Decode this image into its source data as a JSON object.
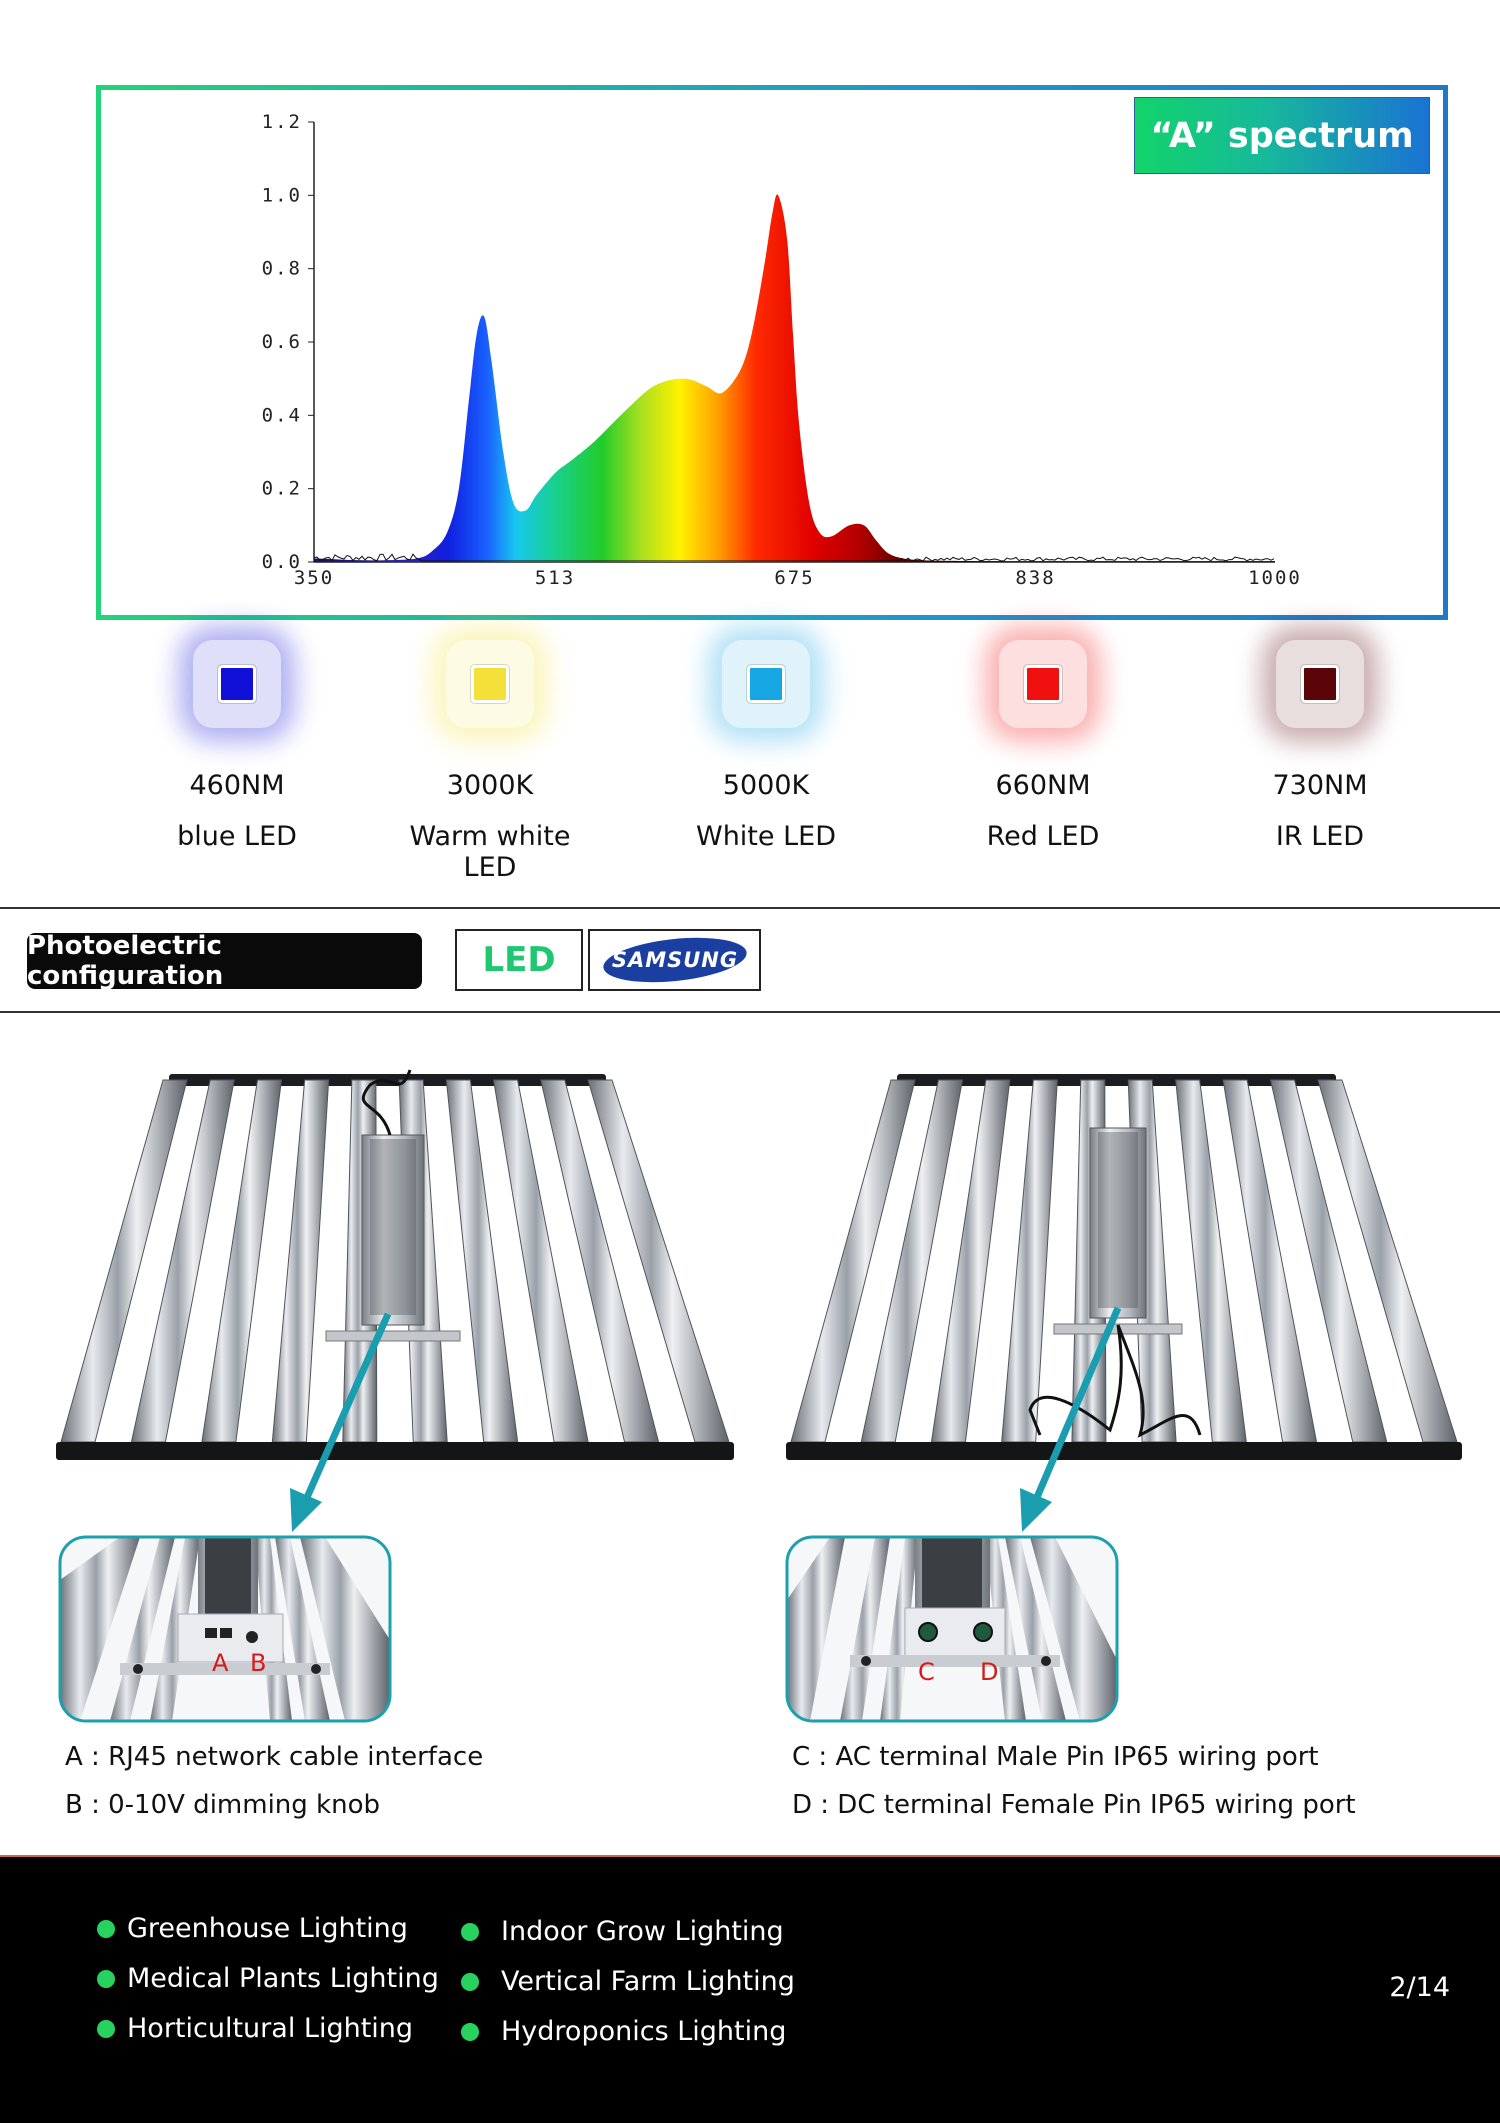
{
  "spectrum": {
    "badge": "“A” spectrum",
    "x_ticks": [
      "350",
      "513",
      "675",
      "838",
      "1000"
    ],
    "y_ticks": [
      "0.0",
      "0.2",
      "0.4",
      "0.6",
      "0.8",
      "1.0",
      "1.2"
    ]
  },
  "chart_data": {
    "type": "area",
    "title": "“A” spectrum",
    "xlabel": "",
    "ylabel": "",
    "xlim": [
      350,
      1000
    ],
    "ylim": [
      0,
      1.2
    ],
    "x": [
      350,
      380,
      400,
      420,
      430,
      440,
      448,
      455,
      460,
      465,
      470,
      478,
      485,
      493,
      500,
      508,
      515,
      525,
      540,
      560,
      580,
      600,
      615,
      625,
      635,
      642,
      648,
      655,
      660,
      664,
      670,
      674,
      678,
      685,
      692,
      700,
      712,
      722,
      730,
      738,
      748,
      760,
      780,
      838,
      1000
    ],
    "series": [
      {
        "values": [
          0.01,
          0.005,
          0.005,
          0.01,
          0.03,
          0.08,
          0.2,
          0.45,
          0.62,
          0.67,
          0.55,
          0.3,
          0.16,
          0.14,
          0.18,
          0.22,
          0.25,
          0.28,
          0.33,
          0.41,
          0.48,
          0.5,
          0.48,
          0.46,
          0.5,
          0.56,
          0.66,
          0.82,
          0.95,
          1.0,
          0.88,
          0.62,
          0.38,
          0.16,
          0.08,
          0.07,
          0.1,
          0.1,
          0.06,
          0.025,
          0.01,
          0.005,
          0.003,
          0.002,
          0.002
        ]
      }
    ],
    "grid": false
  },
  "leds": [
    {
      "wave": "460NM",
      "name": "blue LED",
      "color": "#1010d8"
    },
    {
      "wave": "3000K",
      "name": "Warm white LED",
      "color": "#f4e038"
    },
    {
      "wave": "5000K",
      "name": "White LED",
      "color": "#16a6e4"
    },
    {
      "wave": "660NM",
      "name": "Red LED",
      "color": "#f01010"
    },
    {
      "wave": "730NM",
      "name": "IR LED",
      "color": "#5a0408"
    }
  ],
  "config": {
    "label": "Photoelectric configuration",
    "led": "LED",
    "brand": "SAMSUNG"
  },
  "products": {
    "left_labels": [
      "A",
      "B"
    ],
    "right_labels": [
      "C",
      "D"
    ]
  },
  "captions": {
    "a": "A : RJ45 network cable interface",
    "b": "B : 0-10V dimming knob",
    "c": "C : AC terminal Male Pin IP65 wiring port",
    "d": "D : DC terminal Female Pin IP65 wiring port"
  },
  "applications": {
    "col1": [
      "Greenhouse Lighting",
      "Medical Plants Lighting",
      "Horticultural Lighting"
    ],
    "col2": [
      "Indoor Grow Lighting",
      "Vertical Farm Lighting",
      "Hydroponics Lighting"
    ]
  },
  "page": "2/14"
}
